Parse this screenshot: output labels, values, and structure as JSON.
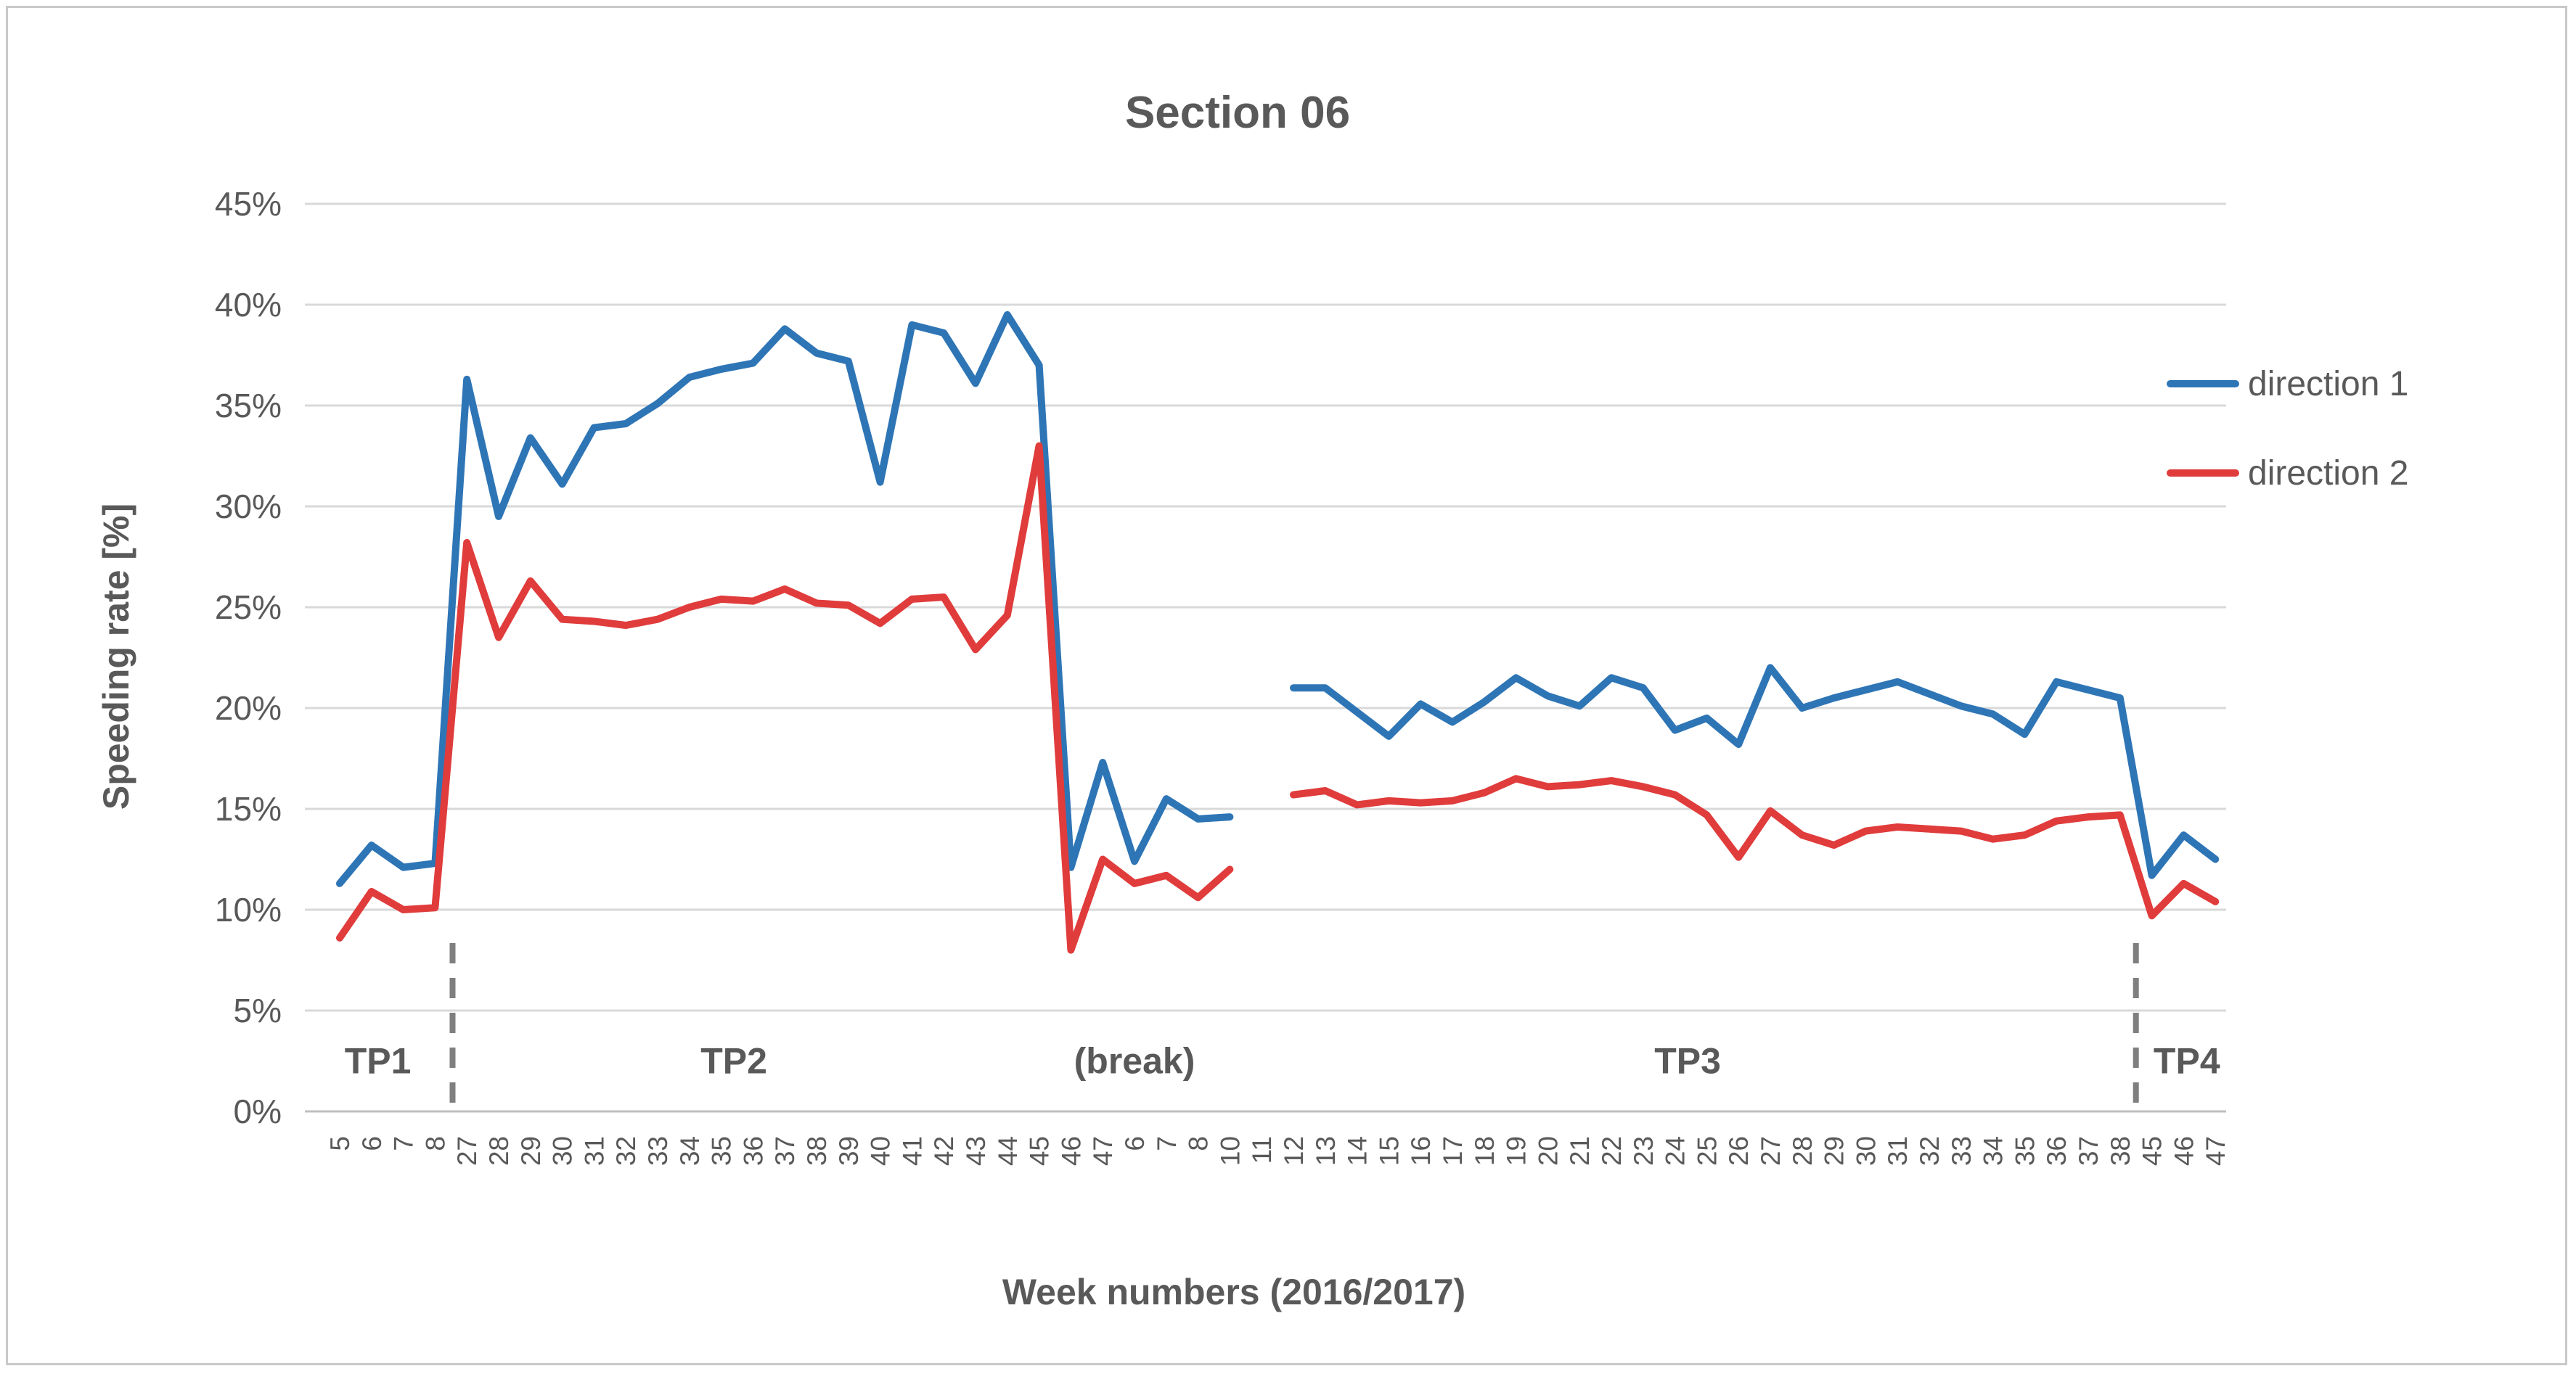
{
  "chart_data": {
    "type": "line",
    "title": "Section 06",
    "xlabel": "Week numbers (2016/2017)",
    "ylabel": "Speeding rate [%]",
    "ylim": [
      0,
      45
    ],
    "y_tick_step": 5,
    "y_ticks": [
      "0%",
      "5%",
      "10%",
      "15%",
      "20%",
      "25%",
      "30%",
      "35%",
      "40%",
      "45%"
    ],
    "grid": true,
    "legend_position": "right",
    "categories": [
      "5",
      "6",
      "7",
      "8",
      "27",
      "28",
      "29",
      "30",
      "31",
      "32",
      "33",
      "34",
      "35",
      "36",
      "37",
      "38",
      "39",
      "40",
      "41",
      "42",
      "43",
      "44",
      "45",
      "46",
      "47",
      "6",
      "7",
      "8",
      "10",
      "11",
      "12",
      "13",
      "14",
      "15",
      "16",
      "17",
      "18",
      "19",
      "20",
      "21",
      "22",
      "23",
      "24",
      "25",
      "26",
      "27",
      "28",
      "29",
      "30",
      "31",
      "32",
      "33",
      "34",
      "35",
      "36",
      "37",
      "38",
      "45",
      "46",
      "47"
    ],
    "series": [
      {
        "name": "direction 1",
        "color": "#2E75B6",
        "values": [
          11.3,
          13.2,
          12.1,
          12.3,
          36.3,
          29.5,
          33.4,
          31.1,
          33.9,
          34.1,
          35.1,
          36.4,
          36.8,
          37.1,
          38.8,
          37.6,
          37.2,
          31.2,
          39.0,
          38.6,
          36.1,
          39.5,
          37.0,
          12.1,
          17.3,
          12.4,
          15.5,
          14.5,
          14.6,
          null,
          21.0,
          21.0,
          19.8,
          18.6,
          20.2,
          19.3,
          20.3,
          21.5,
          20.6,
          20.1,
          21.5,
          21.0,
          18.9,
          19.5,
          18.2,
          22.0,
          20.0,
          20.5,
          20.9,
          21.3,
          20.7,
          20.1,
          19.7,
          18.7,
          21.3,
          20.9,
          20.5,
          11.7,
          13.7,
          12.5
        ]
      },
      {
        "name": "direction 2",
        "color": "#E03C3C",
        "values": [
          8.6,
          10.9,
          10.0,
          10.1,
          28.2,
          23.5,
          26.3,
          24.4,
          24.3,
          24.1,
          24.4,
          25.0,
          25.4,
          25.3,
          25.9,
          25.2,
          25.1,
          24.2,
          25.4,
          25.5,
          22.9,
          24.6,
          33.0,
          8.0,
          12.5,
          11.3,
          11.7,
          10.6,
          12.0,
          null,
          15.7,
          15.9,
          15.2,
          15.4,
          15.3,
          15.4,
          15.8,
          16.5,
          16.1,
          16.2,
          16.4,
          16.1,
          15.7,
          14.7,
          12.6,
          14.9,
          13.7,
          13.2,
          13.9,
          14.1,
          14.0,
          13.9,
          13.5,
          13.7,
          14.4,
          14.6,
          14.7,
          9.7,
          11.3,
          10.4
        ]
      }
    ],
    "period_labels": [
      {
        "text": "TP1",
        "at_index": 1.2
      },
      {
        "text": "TP2",
        "at_index": 12.4
      },
      {
        "text": "(break)",
        "at_index": 25.0
      },
      {
        "text": "TP3",
        "at_index": 42.4
      },
      {
        "text": "TP4",
        "at_index": 58.1
      }
    ],
    "dividers": [
      {
        "between_index": 3.55
      },
      {
        "between_index": 56.5
      }
    ],
    "colors": {
      "grid": "#D9D9D9",
      "axis_line": "#BFBFBF",
      "tick_text": "#595959",
      "heading_text": "#595959",
      "divider_dash": "#7F7F7F"
    }
  }
}
